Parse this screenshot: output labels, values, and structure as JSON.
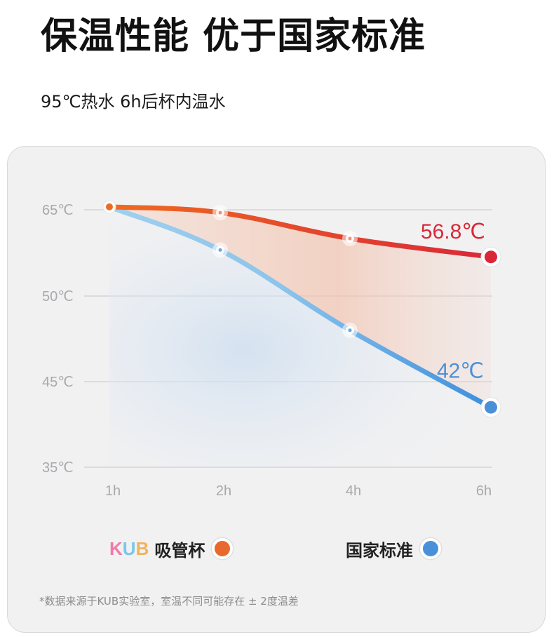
{
  "page": {
    "title": "保温性能 优于国家标准",
    "subtitle": "95℃热水 6h后杯内温水",
    "footnote": "*数据来源于KUB实验室，室温不同可能存在 ± 2度温差"
  },
  "legend": {
    "brand_logo_text": "KUB",
    "brand_logo_colors": [
      "#f07aa8",
      "#7cc6e9",
      "#f2b35a"
    ],
    "series1_label": "吸管杯",
    "series1_color": "#e8692e",
    "series2_label": "国家标准",
    "series2_color": "#4a90d9"
  },
  "chart_data": {
    "type": "line",
    "title": "",
    "xlabel": "",
    "ylabel": "",
    "categories": [
      "1h",
      "2h",
      "4h",
      "6h"
    ],
    "y_ticks": [
      "65℃",
      "50℃",
      "45℃",
      "35℃"
    ],
    "series": [
      {
        "name": "吸管杯",
        "values": [
          65.5,
          64.5,
          60,
          56.8
        ],
        "color_start": "#f06a1f",
        "color_end": "#d92838",
        "end_label": "56.8℃"
      },
      {
        "name": "国家标准",
        "values": [
          65.5,
          58,
          48,
          42
        ],
        "color_start": "#9fd0ee",
        "color_end": "#3d8fdc",
        "end_label": "42℃"
      }
    ],
    "grid": true
  }
}
